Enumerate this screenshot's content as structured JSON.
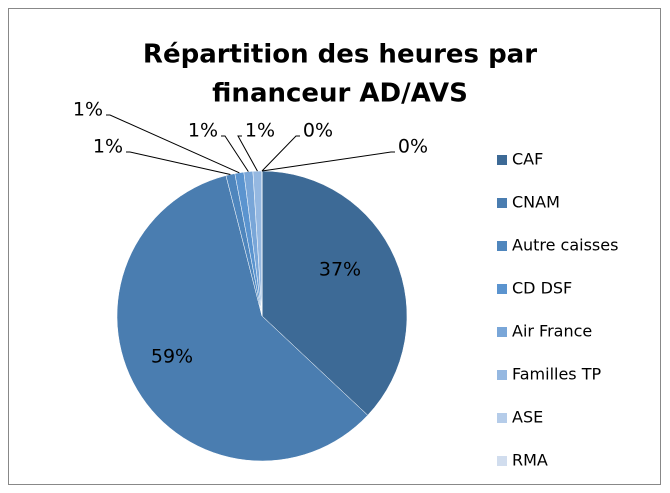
{
  "chart_data": {
    "type": "pie",
    "title": [
      "Répartition des heures par",
      "financeur AD/AVS"
    ],
    "categories": [
      "CAF",
      "CNAM",
      "Autre caisses",
      "CD DSF",
      "Air France",
      "Familles TP",
      "ASE",
      "RMA"
    ],
    "values": [
      37,
      59,
      1,
      1,
      1,
      1,
      0,
      0
    ],
    "value_labels": [
      "37%",
      "59%",
      "1%",
      "1%",
      "1%",
      "1%",
      "0%",
      "0%"
    ],
    "colors": [
      "#3d6a96",
      "#4a7db0",
      "#4f86bd",
      "#5b94cf",
      "#79a6d8",
      "#95b8e1",
      "#b5cce9",
      "#d1ddee"
    ],
    "legend": "right"
  }
}
